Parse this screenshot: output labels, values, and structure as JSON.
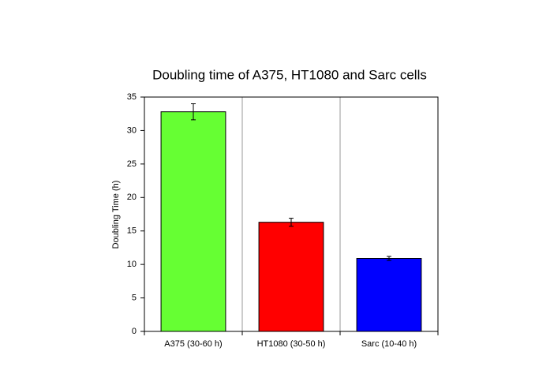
{
  "chart_data": {
    "type": "bar",
    "title": "Doubling time of A375, HT1080 and Sarc cells",
    "y_label": "Doubling Time (h)",
    "categories": [
      "A375 (30-60 h)",
      "HT1080 (30-50 h)",
      "Sarc (10-40 h)"
    ],
    "values": [
      32.8,
      16.3,
      10.9
    ],
    "errors": [
      1.2,
      0.6,
      0.3
    ],
    "colors": [
      "#66ff33",
      "#ff0000",
      "#0000ff"
    ],
    "ylim": [
      0,
      35
    ],
    "yticks": [
      0,
      5,
      10,
      15,
      20,
      25,
      30,
      35
    ]
  }
}
